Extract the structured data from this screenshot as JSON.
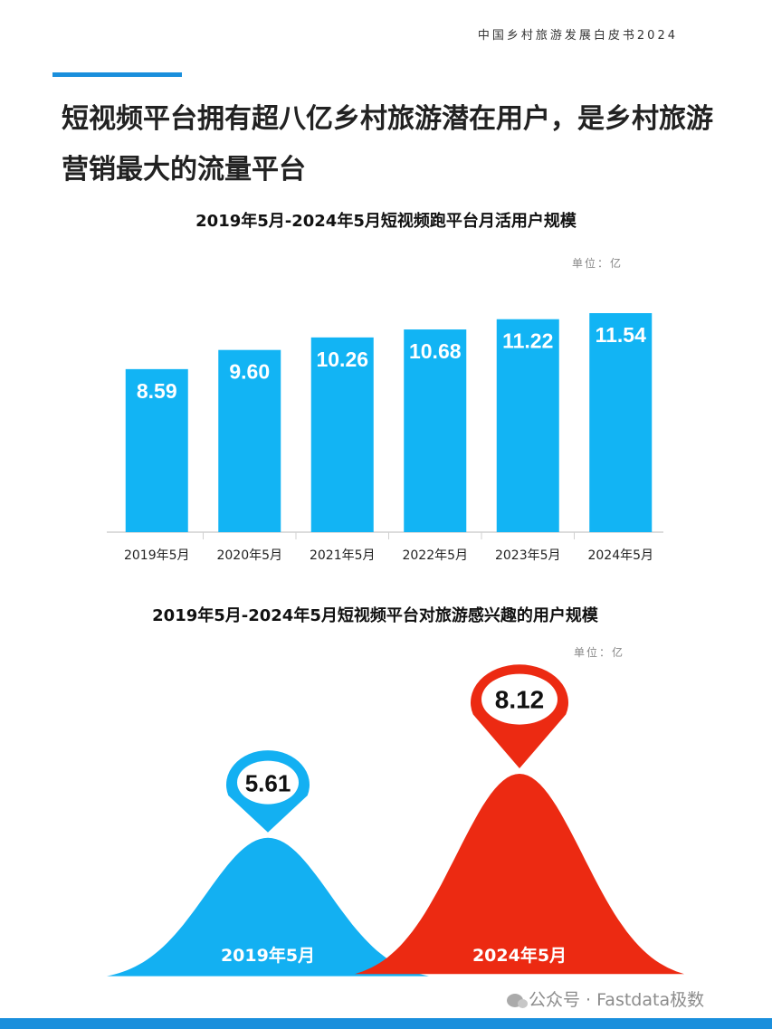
{
  "header": {
    "report_title": "中国乡村旅游发展白皮书2024",
    "headline": "短视频平台拥有超八亿乡村旅游潜在用户，是乡村旅游营销最大的流量平台"
  },
  "colors": {
    "bar": "#12b4f4",
    "bell_2019": "#13b0f2",
    "bell_2024": "#ec2a12",
    "accent": "#1a8fdc"
  },
  "chart_data": [
    {
      "type": "bar",
      "title": "2019年5月-2024年5月短视频跑平台月活用户规模",
      "unit_label": "单位：亿",
      "categories": [
        "2019年5月",
        "2020年5月",
        "2021年5月",
        "2022年5月",
        "2023年5月",
        "2024年5月"
      ],
      "values": [
        8.59,
        9.6,
        10.26,
        10.68,
        11.22,
        11.54
      ],
      "value_labels": [
        "8.59",
        "9.60",
        "10.26",
        "10.68",
        "11.22",
        "11.54"
      ],
      "ylim": [
        0,
        12
      ],
      "grid": false
    },
    {
      "type": "area",
      "title": "2019年5月-2024年5月短视频平台对旅游感兴趣的用户规模",
      "unit_label": "单位：亿",
      "categories": [
        "2019年5月",
        "2024年5月"
      ],
      "values": [
        5.61,
        8.12
      ],
      "value_labels": [
        "5.61",
        "8.12"
      ]
    }
  ],
  "watermark": "公众号 · Fastdata极数"
}
